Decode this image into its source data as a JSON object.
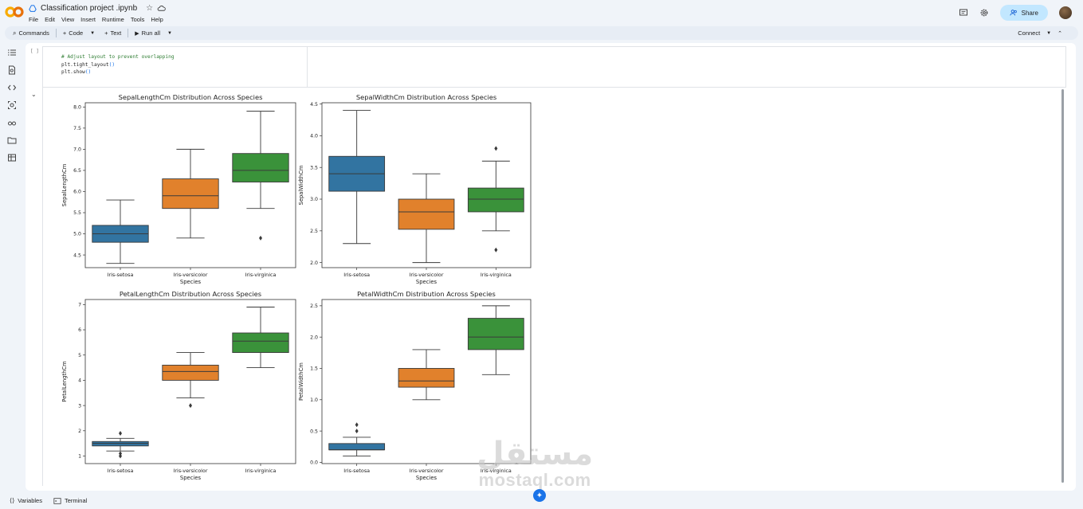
{
  "app": {
    "title": "Classification project .ipynb",
    "menu": [
      "File",
      "Edit",
      "View",
      "Insert",
      "Runtime",
      "Tools",
      "Help"
    ],
    "share_label": "Share"
  },
  "toolbar": {
    "commands": "Commands",
    "code": "Code",
    "text": "Text",
    "run_all": "Run all",
    "connect": "Connect"
  },
  "cell": {
    "brackets": "[ ]",
    "code_comment": "# Adjust layout to prevent overlapping",
    "code_line2_fn": "plt.tight_layout",
    "code_line3_fn": "plt.show",
    "parens": "()"
  },
  "bottom": {
    "variables": "Variables",
    "terminal": "Terminal"
  },
  "watermark": {
    "arabic": "مستقل",
    "latin": "mostaql.com"
  },
  "colors": {
    "setosa": "#3274a1",
    "versicolor": "#e1812c",
    "virginica": "#3a923a",
    "accent": "#c2e7ff"
  },
  "chart_data": [
    {
      "type": "box",
      "title": "SepalLengthCm Distribution Across Species",
      "xlabel": "Species",
      "ylabel": "SepalLengthCm",
      "categories": [
        "Iris-setosa",
        "Iris-versicolor",
        "Iris-virginica"
      ],
      "ylim": [
        4.2,
        8.1
      ],
      "yticks": [
        4.5,
        5.0,
        5.5,
        6.0,
        6.5,
        7.0,
        7.5,
        8.0
      ],
      "ytick_labels": [
        "4.5",
        "5.0",
        "5.5",
        "6.0",
        "6.5",
        "7.0",
        "7.5",
        "8.0"
      ],
      "boxes": [
        {
          "whislo": 4.3,
          "q1": 4.8,
          "med": 5.0,
          "q3": 5.2,
          "whishi": 5.8,
          "fliers": []
        },
        {
          "whislo": 4.9,
          "q1": 5.6,
          "med": 5.9,
          "q3": 6.3,
          "whishi": 7.0,
          "fliers": []
        },
        {
          "whislo": 5.6,
          "q1": 6.225,
          "med": 6.5,
          "q3": 6.9,
          "whishi": 7.9,
          "fliers": [
            4.9
          ]
        }
      ]
    },
    {
      "type": "box",
      "title": "SepalWidthCm Distribution Across Species",
      "xlabel": "Species",
      "ylabel": "SepalWidthCm",
      "categories": [
        "Iris-setosa",
        "Iris-versicolor",
        "Iris-virginica"
      ],
      "ylim": [
        1.92,
        4.52
      ],
      "yticks": [
        2.0,
        2.5,
        3.0,
        3.5,
        4.0,
        4.5
      ],
      "ytick_labels": [
        "2.0",
        "2.5",
        "3.0",
        "3.5",
        "4.0",
        "4.5"
      ],
      "boxes": [
        {
          "whislo": 2.3,
          "q1": 3.125,
          "med": 3.4,
          "q3": 3.675,
          "whishi": 4.4,
          "fliers": []
        },
        {
          "whislo": 2.0,
          "q1": 2.525,
          "med": 2.8,
          "q3": 3.0,
          "whishi": 3.4,
          "fliers": []
        },
        {
          "whislo": 2.5,
          "q1": 2.8,
          "med": 3.0,
          "q3": 3.175,
          "whishi": 3.6,
          "fliers": [
            3.8,
            2.2
          ]
        }
      ]
    },
    {
      "type": "box",
      "title": "PetalLengthCm Distribution Across Species",
      "xlabel": "Species",
      "ylabel": "PetalLengthCm",
      "categories": [
        "Iris-setosa",
        "Iris-versicolor",
        "Iris-virginica"
      ],
      "ylim": [
        0.7,
        7.2
      ],
      "yticks": [
        1,
        2,
        3,
        4,
        5,
        6,
        7
      ],
      "ytick_labels": [
        "1",
        "2",
        "3",
        "4",
        "5",
        "6",
        "7"
      ],
      "boxes": [
        {
          "whislo": 1.2,
          "q1": 1.4,
          "med": 1.5,
          "q3": 1.575,
          "whishi": 1.7,
          "fliers": [
            1.9,
            1.1,
            1.0
          ]
        },
        {
          "whislo": 3.3,
          "q1": 4.0,
          "med": 4.35,
          "q3": 4.6,
          "whishi": 5.1,
          "fliers": [
            3.0
          ]
        },
        {
          "whislo": 4.5,
          "q1": 5.1,
          "med": 5.55,
          "q3": 5.875,
          "whishi": 6.9,
          "fliers": []
        }
      ]
    },
    {
      "type": "box",
      "title": "PetalWidthCm Distribution Across Species",
      "xlabel": "Species",
      "ylabel": "PetalWidthCm",
      "categories": [
        "Iris-setosa",
        "Iris-versicolor",
        "Iris-virginica"
      ],
      "ylim": [
        -0.02,
        2.6
      ],
      "yticks": [
        0.0,
        0.5,
        1.0,
        1.5,
        2.0,
        2.5
      ],
      "ytick_labels": [
        "0.0",
        "0.5",
        "1.0",
        "1.5",
        "2.0",
        "2.5"
      ],
      "boxes": [
        {
          "whislo": 0.1,
          "q1": 0.2,
          "med": 0.2,
          "q3": 0.3,
          "whishi": 0.4,
          "fliers": [
            0.5,
            0.6
          ]
        },
        {
          "whislo": 1.0,
          "q1": 1.2,
          "med": 1.3,
          "q3": 1.5,
          "whishi": 1.8,
          "fliers": []
        },
        {
          "whislo": 1.4,
          "q1": 1.8,
          "med": 2.0,
          "q3": 2.3,
          "whishi": 2.5,
          "fliers": []
        }
      ]
    }
  ]
}
